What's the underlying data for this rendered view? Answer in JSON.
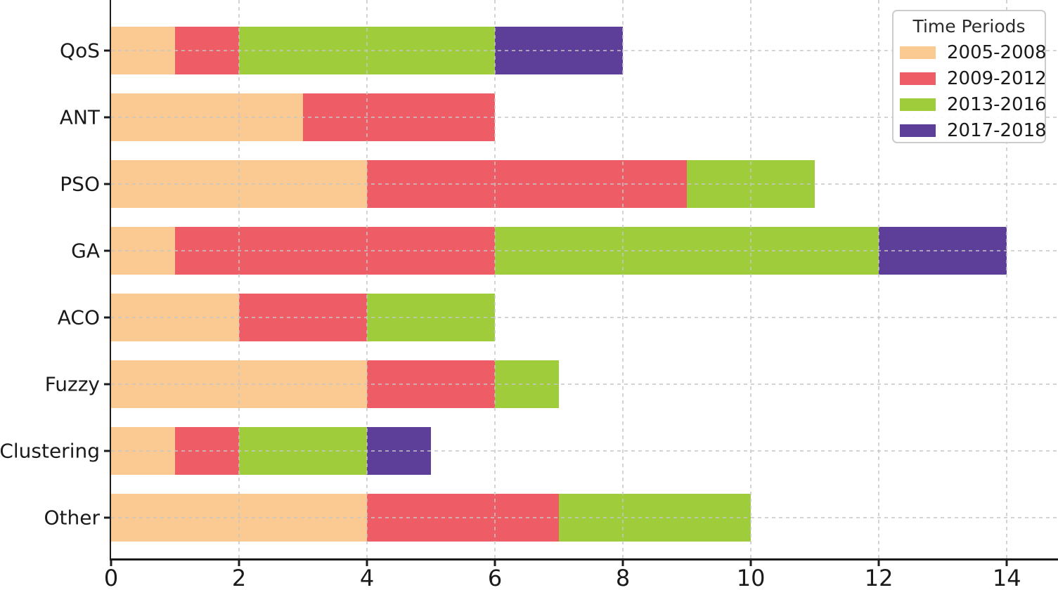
{
  "chart_data": {
    "type": "bar",
    "orientation": "horizontal",
    "stacked": true,
    "title": "",
    "xlabel": "",
    "ylabel": "",
    "categories": [
      "QoS",
      "ANT",
      "PSO",
      "GA",
      "ACO",
      "Fuzzy",
      "Clustering",
      "Other"
    ],
    "series": [
      {
        "name": "2005-2008",
        "color": "#FBCA92",
        "values": [
          1,
          3,
          4,
          1,
          2,
          4,
          1,
          4
        ]
      },
      {
        "name": "2009-2012",
        "color": "#EE5D66",
        "values": [
          1,
          3,
          5,
          5,
          2,
          2,
          1,
          3
        ]
      },
      {
        "name": "2013-2016",
        "color": "#9ECC3B",
        "values": [
          4,
          0,
          2,
          6,
          2,
          1,
          2,
          3
        ]
      },
      {
        "name": "2017-2018",
        "color": "#5D3F99",
        "values": [
          2,
          0,
          0,
          2,
          0,
          0,
          1,
          0
        ]
      }
    ],
    "totals": {
      "QoS": 8,
      "ANT": 6,
      "PSO": 11,
      "GA": 14,
      "ACO": 6,
      "Fuzzy": 7,
      "Clustering": 5,
      "Other": 10
    },
    "xlim": [
      0,
      14.8
    ],
    "xticks": [
      0,
      2,
      4,
      6,
      8,
      10,
      12,
      14
    ],
    "grid": true,
    "grid_style": "dashed",
    "legend": {
      "title": "Time Periods",
      "position": "upper right"
    },
    "colors": {
      "axis": "#1c1c1c",
      "grid": "#c6c6c6",
      "background": "#ffffff",
      "text": "#1a1a1a"
    }
  }
}
